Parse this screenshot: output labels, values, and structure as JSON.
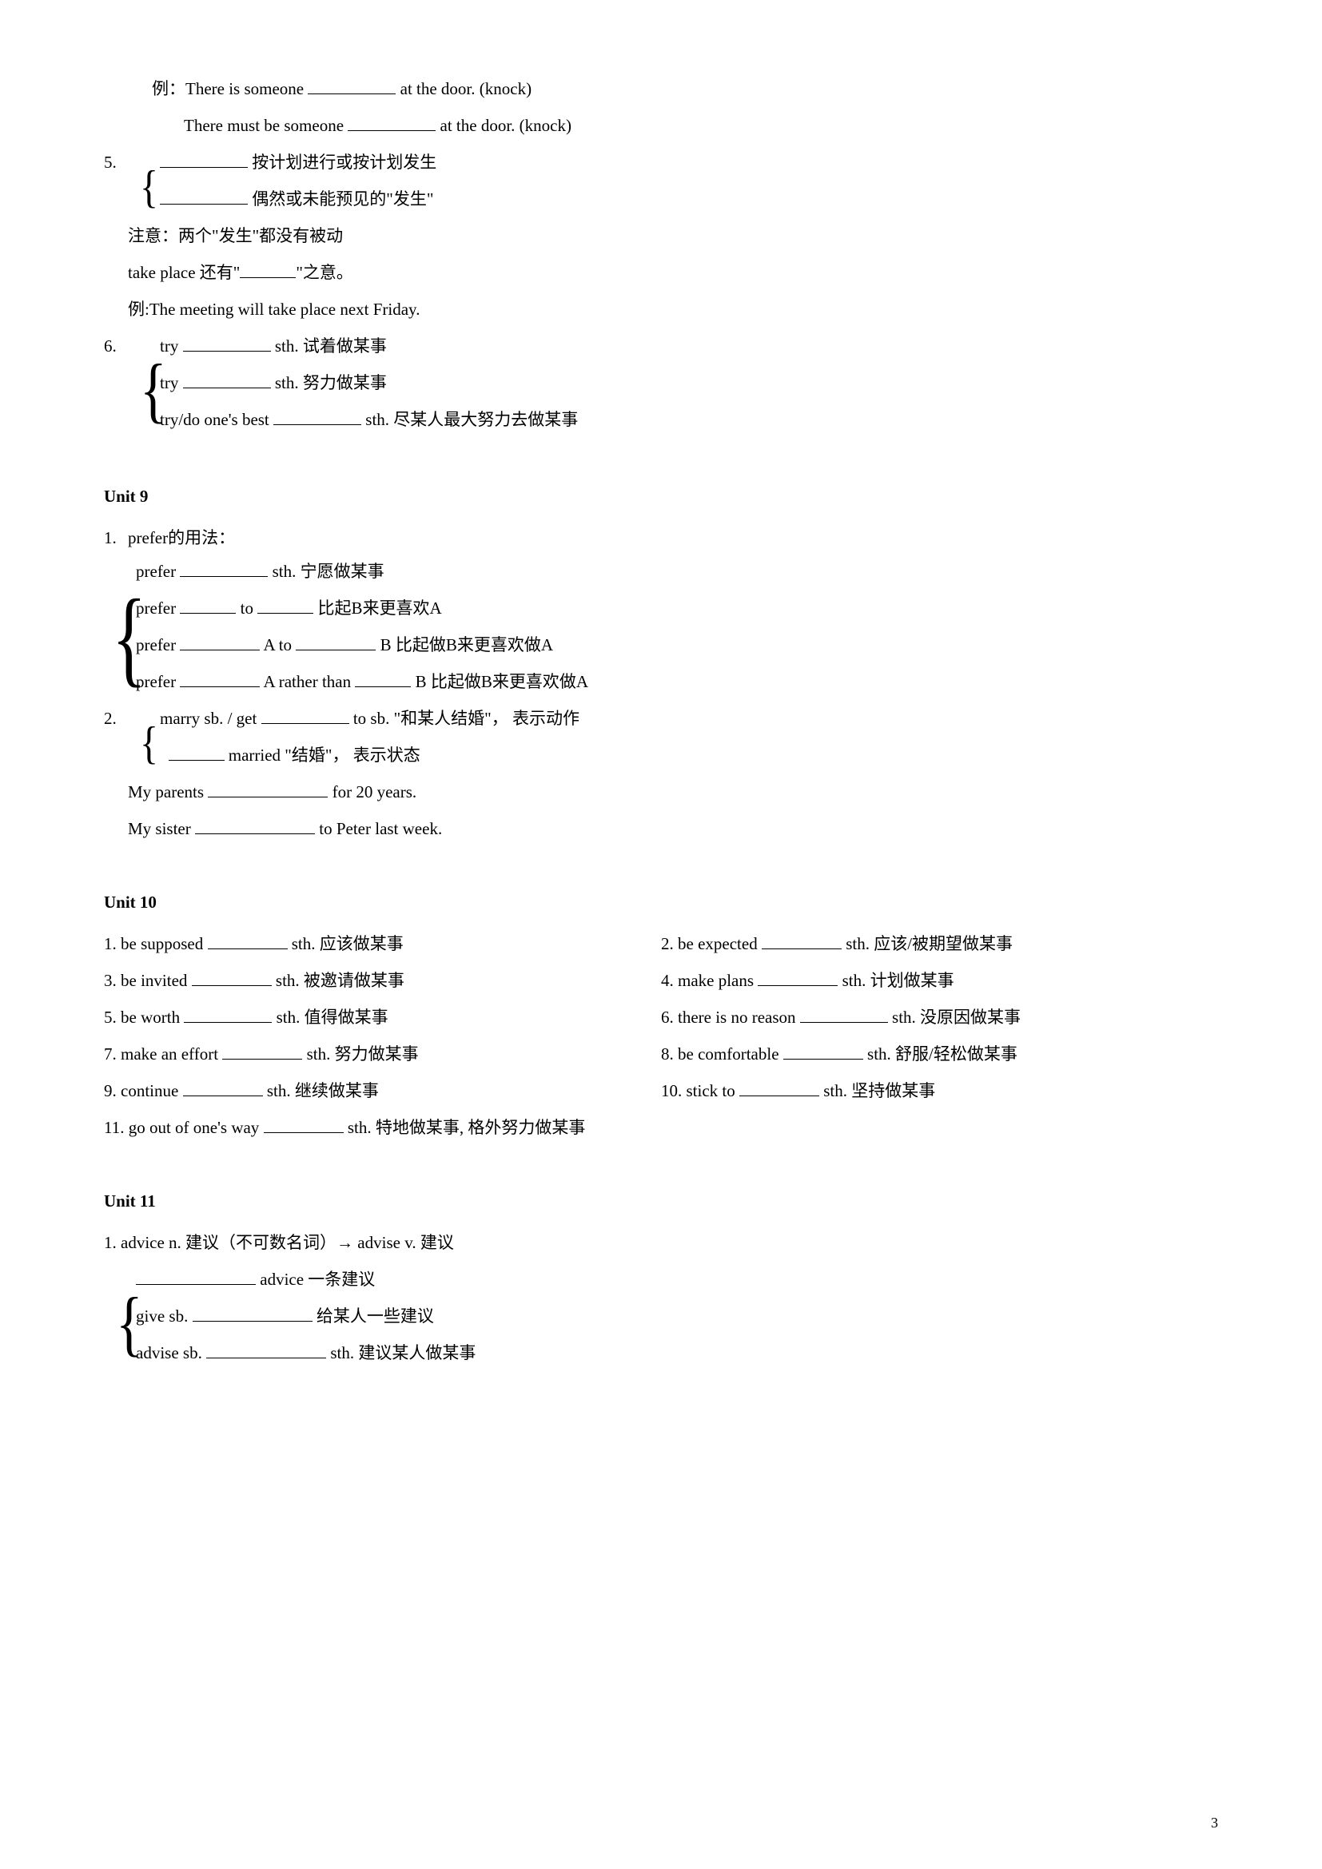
{
  "pre_unit9": {
    "example1_prefix": "例：There is someone",
    "example1_suffix": "at the door.   (knock)",
    "example2_prefix": "There must be someone",
    "example2_suffix": "at the door. (knock)",
    "item5_num": "5.",
    "item5_opt1_suffix": "按计划进行或按计划发生",
    "item5_opt2_suffix": "偶然或未能预见的\"发生\"",
    "item5_note1": "注意：两个\"发生\"都没有被动",
    "item5_note2_prefix": "take place 还有\"",
    "item5_note2_suffix": "\"之意。",
    "item5_example": "例:The meeting will take place next Friday.",
    "item6_num": "6.",
    "item6_opt1_prefix": "try",
    "item6_opt1_suffix": "sth.   试着做某事",
    "item6_opt2_prefix": "try",
    "item6_opt2_suffix": "sth.   努力做某事",
    "item6_opt3_prefix": "try/do one's best",
    "item6_opt3_suffix": "sth.   尽某人最大努力去做某事"
  },
  "unit9": {
    "header": "Unit 9",
    "item1_num": "1.",
    "item1_title": "prefer的用法：",
    "item1_opt1_prefix": "prefer",
    "item1_opt1_suffix": "sth. 宁愿做某事",
    "item1_opt2_prefix": "prefer",
    "item1_opt2_mid": "to",
    "item1_opt2_suffix": "比起B来更喜欢A",
    "item1_opt3_prefix": "prefer",
    "item1_opt3_mid1": "A to",
    "item1_opt3_suffix": "B  比起做B来更喜欢做A",
    "item1_opt4_prefix": "prefer",
    "item1_opt4_mid1": "A rather than",
    "item1_opt4_suffix": "B   比起做B来更喜欢做A",
    "item2_num": "2.",
    "item2_opt1_prefix": "marry sb. / get",
    "item2_opt1_suffix": "to sb. \"和某人结婚\"，  表示动作",
    "item2_opt2_suffix": "married \"结婚\"，  表示状态",
    "item2_ex1_prefix": "My parents",
    "item2_ex1_suffix": "for 20 years.",
    "item2_ex2_prefix": "My sister",
    "item2_ex2_suffix": "to Peter last week."
  },
  "unit10": {
    "header": "Unit 10",
    "i1_prefix": "1. be supposed",
    "i1_suffix": "sth.   应该做某事",
    "i2_prefix": "2. be expected",
    "i2_suffix": "sth. 应该/被期望做某事",
    "i3_prefix": "3. be invited",
    "i3_suffix": "sth.   被邀请做某事",
    "i4_prefix": "4. make plans",
    "i4_suffix": "sth.   计划做某事",
    "i5_prefix": "5. be worth",
    "i5_suffix": "sth.   值得做某事",
    "i6_prefix": "6. there is no reason",
    "i6_suffix": "sth.   没原因做某事",
    "i7_prefix": "7. make an effort",
    "i7_suffix": "sth.   努力做某事",
    "i8_prefix": "8. be comfortable",
    "i8_suffix": "sth. 舒服/轻松做某事",
    "i9_prefix": "9. continue",
    "i9_suffix": "sth.   继续做某事",
    "i10_prefix": "10. stick to",
    "i10_suffix": "sth.   坚持做某事",
    "i11_prefix": "11. go out of one's way",
    "i11_suffix": "sth.   特地做某事, 格外努力做某事"
  },
  "unit11": {
    "header": "Unit 11",
    "item1": "1. advice   n. 建议（不可数名词）→ advise   v. 建议",
    "opt1_suffix": "advice   一条建议",
    "opt2_prefix": "give sb.",
    "opt2_suffix": "给某人一些建议",
    "opt3_prefix": "advise sb.",
    "opt3_suffix": "sth.   建议某人做某事"
  },
  "page_number": "3"
}
